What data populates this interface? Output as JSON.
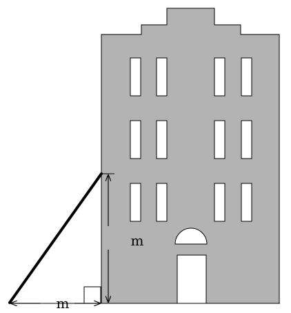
{
  "figure": {
    "vertical_dimension_label": "m",
    "horizontal_dimension_label": "m"
  },
  "colors": {
    "building_fill": "#b3b3b3",
    "window_fill": "#ffffff",
    "stroke": "#000000",
    "ladder": "#000000"
  }
}
